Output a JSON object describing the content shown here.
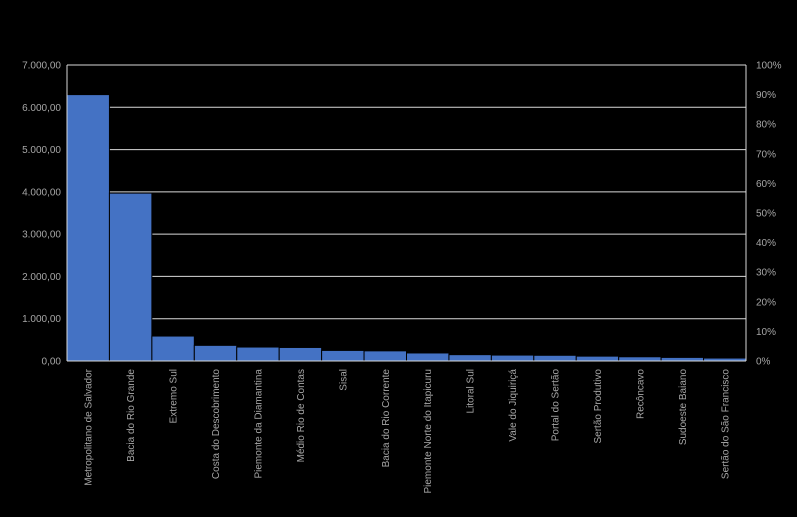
{
  "chart_data": {
    "type": "bar",
    "title": "",
    "xlabel": "",
    "ylabel": "",
    "categories": [
      "Metropolitano de Salvador",
      "Bacia do Rio Grande",
      "Extremo Sul",
      "Costa do Descobrimento",
      "Piemonte da Diamantina",
      "Médio Rio de Contas",
      "Sisal",
      "Bacia do Rio Corrente",
      "Piemonte Norte do Itapicuru",
      "Litoral Sul",
      "Vale do Jiquiriçá",
      "Portal do Sertão",
      "Sertão Produtivo",
      "Recôncavo",
      "Sudoeste Baiano",
      "Sertão do São Francisco"
    ],
    "values": [
      6300,
      3970,
      590,
      370,
      330,
      320,
      250,
      240,
      190,
      150,
      140,
      135,
      115,
      100,
      85,
      70
    ],
    "ylim": [
      0,
      7000
    ],
    "y_ticks": [
      "0,00",
      "1.000,00",
      "2.000,00",
      "3.000,00",
      "4.000,00",
      "5.000,00",
      "6.000,00",
      "7.000,00"
    ],
    "y2lim": [
      0,
      100
    ],
    "y2_ticks": [
      "0%",
      "10%",
      "20%",
      "30%",
      "40%",
      "50%",
      "60%",
      "70%",
      "80%",
      "90%",
      "100%"
    ],
    "grid": true,
    "legend": "none",
    "colors": {
      "bar": "#4472c4",
      "background": "#000000",
      "text": "#a6a6a6",
      "grid": "#d9d9d9"
    }
  }
}
